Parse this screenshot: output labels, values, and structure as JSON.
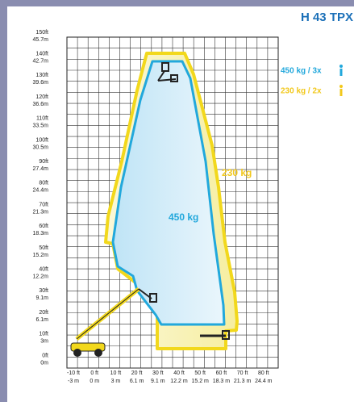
{
  "header": {
    "title": "H 43 TPX"
  },
  "legend": [
    {
      "label": "450 kg / 3x"
    },
    {
      "label": "230 kg / 2x"
    }
  ],
  "envelope_labels": {
    "outer": "230 kg",
    "inner": "450 kg"
  },
  "y_axis": [
    {
      "ft": "150ft",
      "m": "45.7m"
    },
    {
      "ft": "140ft",
      "m": "42.7m"
    },
    {
      "ft": "130ft",
      "m": "39.6m"
    },
    {
      "ft": "120ft",
      "m": "36.6m"
    },
    {
      "ft": "110ft",
      "m": "33.5m"
    },
    {
      "ft": "100ft",
      "m": "30.5m"
    },
    {
      "ft": "90ft",
      "m": "27.4m"
    },
    {
      "ft": "80ft",
      "m": "24.4m"
    },
    {
      "ft": "70ft",
      "m": "21.3m"
    },
    {
      "ft": "60ft",
      "m": "18.3m"
    },
    {
      "ft": "50ft",
      "m": "15.2m"
    },
    {
      "ft": "40ft",
      "m": "12.2m"
    },
    {
      "ft": "30ft",
      "m": "9.1m"
    },
    {
      "ft": "20ft",
      "m": "6.1m"
    },
    {
      "ft": "10ft",
      "m": "3m"
    },
    {
      "ft": "0ft",
      "m": "0m"
    }
  ],
  "x_axis": [
    {
      "ft": "-10 ft",
      "m": "-3 m"
    },
    {
      "ft": "0 ft",
      "m": "0 m"
    },
    {
      "ft": "10 ft",
      "m": "3 m"
    },
    {
      "ft": "20 ft",
      "m": "6.1 m"
    },
    {
      "ft": "30 ft",
      "m": "9.1 m"
    },
    {
      "ft": "40 ft",
      "m": "12.2 m"
    },
    {
      "ft": "50 ft",
      "m": "15.2 m"
    },
    {
      "ft": "60 ft",
      "m": "18.3 m"
    },
    {
      "ft": "70 ft",
      "m": "21.3 m"
    },
    {
      "ft": "80 ft",
      "m": "24.4 m"
    }
  ]
}
